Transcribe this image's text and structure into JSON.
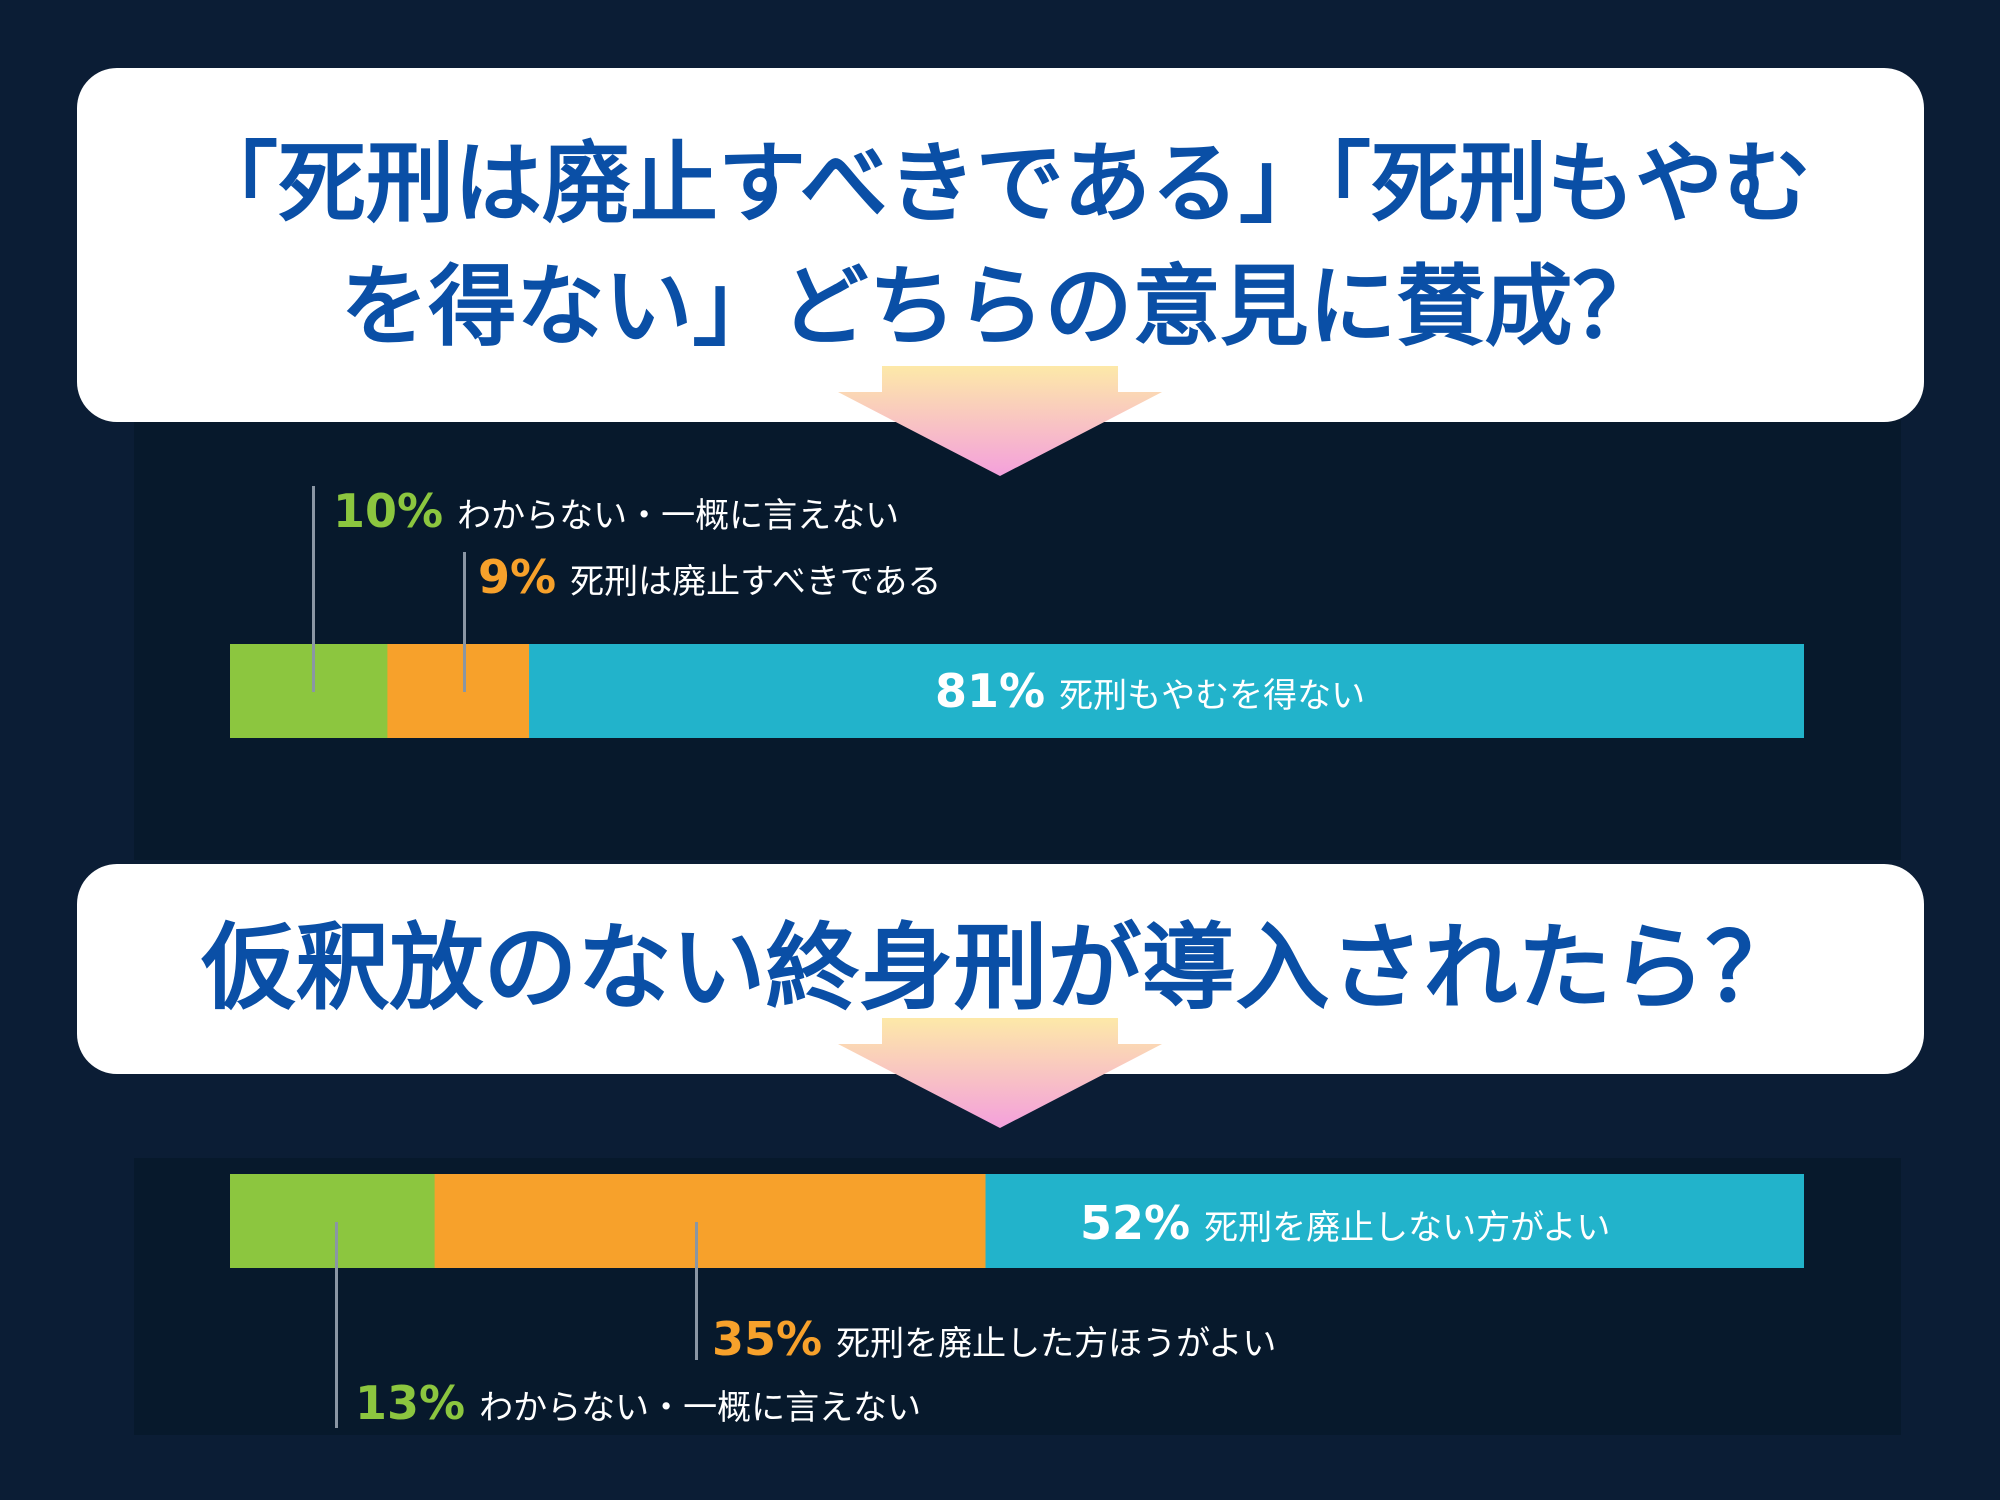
{
  "questions": [
    {
      "text": "「死刑は廃止すべきである」「死刑もやむを得ない」どちらの意見に賛成？"
    },
    {
      "text": "仮釈放のない終身刑が導入されたら？"
    }
  ],
  "colors": {
    "green": "#8cc63f",
    "orange": "#f7a12b",
    "cyan": "#22b3cb",
    "question_text": "#0a4fa6"
  },
  "chart_data": [
    {
      "type": "bar",
      "orientation": "horizontal-stacked",
      "title": "「死刑は廃止すべきである」「死刑もやむを得ない」どちらの意見に賛成？",
      "unit": "%",
      "segments": [
        {
          "value": 10,
          "label": "10%",
          "name": "わからない・一概に言えない",
          "color": "#8cc63f"
        },
        {
          "value": 9,
          "label": "9%",
          "name": "死刑は廃止すべきである",
          "color": "#f7a12b"
        },
        {
          "value": 81,
          "label": "81%",
          "name": "死刑もやむを得ない",
          "color": "#22b3cb"
        }
      ]
    },
    {
      "type": "bar",
      "orientation": "horizontal-stacked",
      "title": "仮釈放のない終身刑が導入されたら？",
      "unit": "%",
      "segments": [
        {
          "value": 13,
          "label": "13%",
          "name": "わからない・一概に言えない",
          "color": "#8cc63f"
        },
        {
          "value": 35,
          "label": "35%",
          "name": "死刑を廃止した方ほうがよい",
          "color": "#f7a12b"
        },
        {
          "value": 52,
          "label": "52%",
          "name": "死刑を廃止しない方がよい",
          "color": "#22b3cb"
        }
      ]
    }
  ]
}
